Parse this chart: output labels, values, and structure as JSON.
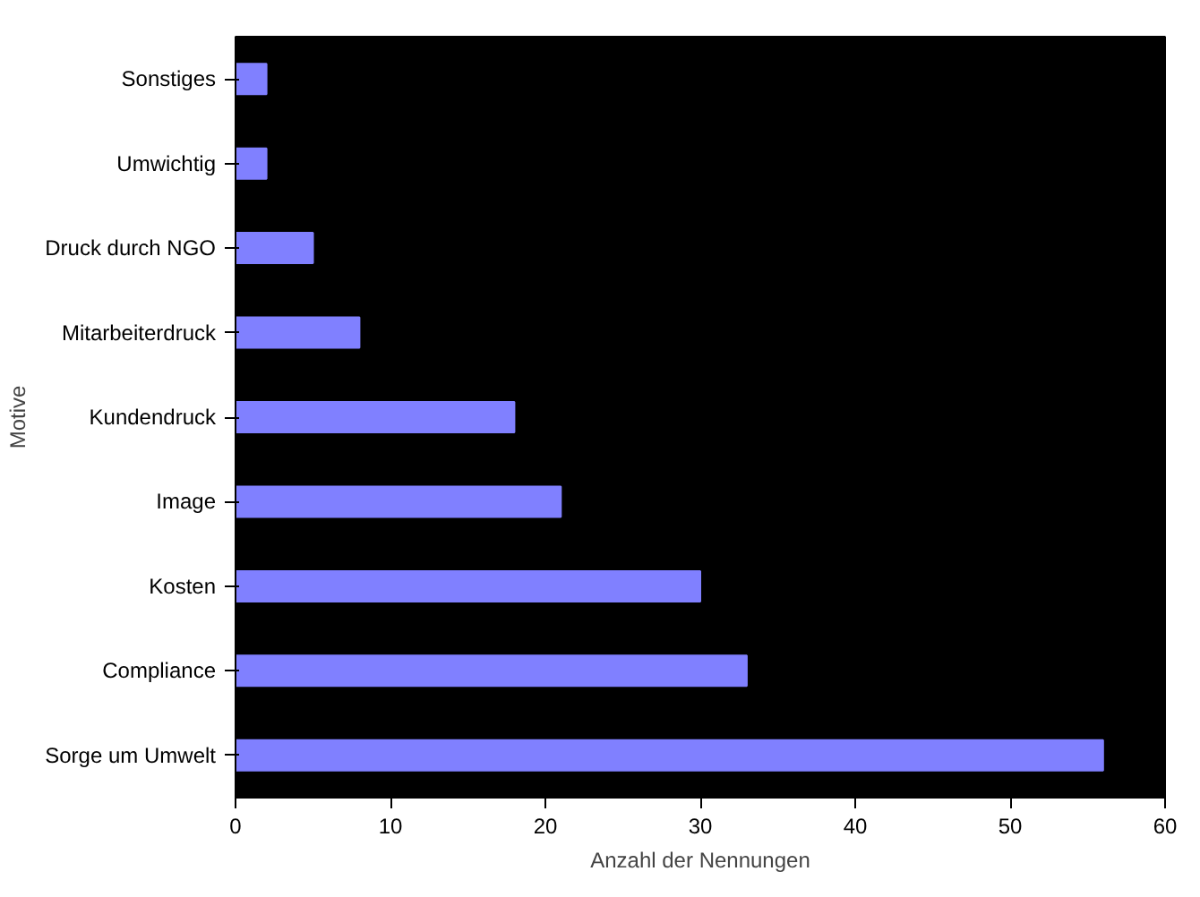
{
  "chart_data": {
    "type": "bar",
    "orientation": "horizontal",
    "xlabel": "Anzahl der Nennungen",
    "ylabel": "Motive",
    "categories": [
      "Sonstiges",
      "Umwichtig",
      "Druck durch NGO",
      "Mitarbeiterdruck",
      "Kundendruck",
      "Image",
      "Kosten",
      "Compliance",
      "Sorge um Umwelt"
    ],
    "values": [
      2,
      2,
      5,
      8,
      18,
      21,
      30,
      33,
      56
    ],
    "color": "#8080ff",
    "xlim": [
      0,
      60
    ],
    "xticks": [
      0,
      10,
      20,
      30,
      40,
      50,
      60
    ],
    "grid": false
  }
}
